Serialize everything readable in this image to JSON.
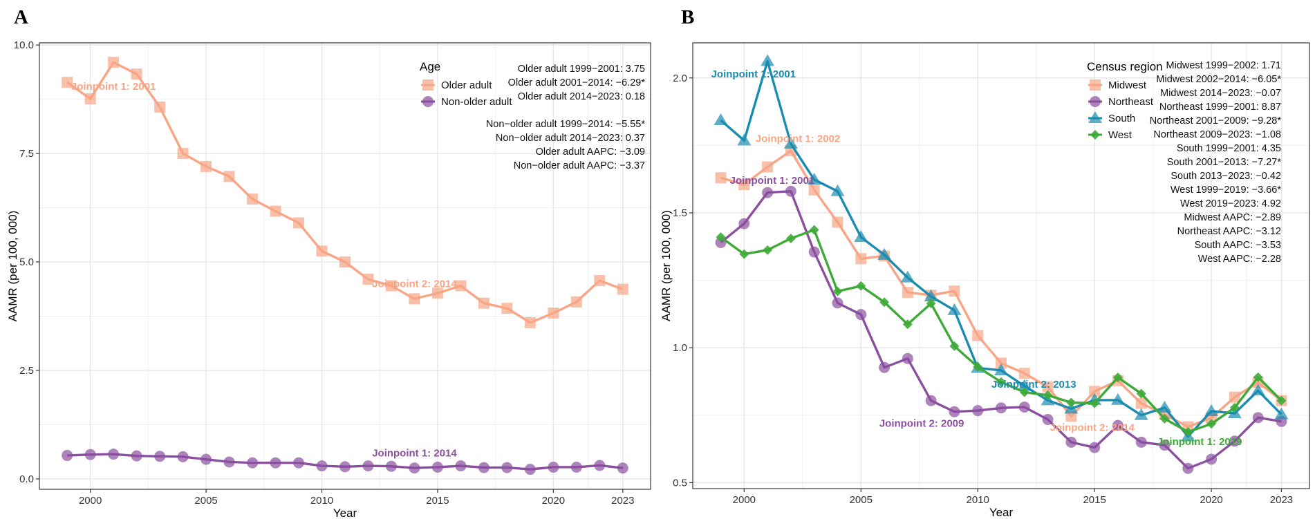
{
  "colors": {
    "orange": "#F7A585",
    "purple": "#8A4F9E",
    "teal": "#1A8CB0",
    "green": "#3DAA37"
  },
  "chart_data": [
    {
      "panel": "A",
      "type": "line",
      "xlabel": "Year",
      "ylabel": "AAMR (per 100, 000)",
      "x_ticks": [
        "2000",
        "2005",
        "2010",
        "2015",
        "2020",
        "2023"
      ],
      "y_ticks": [
        "0.0",
        "2.5",
        "5.0",
        "7.5",
        "10.0"
      ],
      "xlim": [
        1997.8,
        2024.2
      ],
      "ylim": [
        -0.24,
        10.05
      ],
      "grid": true,
      "legend": {
        "title": "Age",
        "placement": "top-right",
        "entries": [
          "Older adult",
          "Non-older adult"
        ]
      },
      "x": [
        1999,
        2000,
        2001,
        2002,
        2003,
        2004,
        2005,
        2006,
        2007,
        2008,
        2009,
        2010,
        2011,
        2012,
        2013,
        2014,
        2015,
        2016,
        2017,
        2018,
        2019,
        2020,
        2021,
        2022,
        2023
      ],
      "series": [
        {
          "name": "Older adult",
          "color_key": "orange",
          "marker": "square",
          "values": [
            9.14,
            8.76,
            9.6,
            9.33,
            8.57,
            7.5,
            7.2,
            6.97,
            6.45,
            6.17,
            5.9,
            5.25,
            5.0,
            4.6,
            4.45,
            4.15,
            4.28,
            4.45,
            4.05,
            3.93,
            3.6,
            3.82,
            4.08,
            4.57,
            4.37
          ]
        },
        {
          "name": "Non-older adult",
          "color_key": "purple",
          "marker": "circle",
          "values": [
            0.54,
            0.56,
            0.57,
            0.53,
            0.52,
            0.51,
            0.45,
            0.39,
            0.37,
            0.37,
            0.37,
            0.3,
            0.28,
            0.3,
            0.29,
            0.25,
            0.27,
            0.3,
            0.26,
            0.26,
            0.22,
            0.27,
            0.27,
            0.31,
            0.25
          ]
        }
      ],
      "annotations": [
        "Older adult 1999−2001: 3.75",
        "Older adult 2001−2014: −6.29*",
        "Older adult 2014−2023: 0.18",
        "",
        "Non−older adult 1999−2014: −5.55*",
        "Non−older adult 2014−2023: 0.37",
        "Older adult AAPC: −3.09",
        "Non−older adult AAPC: −3.37"
      ],
      "joinpoints": [
        {
          "text": "Joinpoint 1: 2001",
          "color_key": "orange",
          "at": [
            2001,
            9.05
          ]
        },
        {
          "text": "Joinpoint 2: 2014",
          "color_key": "orange",
          "at": [
            2014.0,
            4.5
          ]
        },
        {
          "text": "Joinpoint 1: 2014",
          "color_key": "purple",
          "at": [
            2014.0,
            0.6
          ]
        }
      ]
    },
    {
      "panel": "B",
      "type": "line",
      "xlabel": "Year",
      "ylabel": "AAMR (per 100, 000)",
      "x_ticks": [
        "2000",
        "2005",
        "2010",
        "2015",
        "2020",
        "2023"
      ],
      "y_ticks": [
        "0.5",
        "1.0",
        "1.5",
        "2.0"
      ],
      "xlim": [
        1997.8,
        2024.2
      ],
      "ylim": [
        0.478,
        2.13
      ],
      "grid": true,
      "legend": {
        "title": "Census region",
        "placement": "top-right",
        "entries": [
          "Midwest",
          "Northeast",
          "South",
          "West"
        ]
      },
      "x": [
        1999,
        2000,
        2001,
        2002,
        2003,
        2004,
        2005,
        2006,
        2007,
        2008,
        2009,
        2010,
        2011,
        2012,
        2013,
        2014,
        2015,
        2016,
        2017,
        2018,
        2019,
        2020,
        2021,
        2022,
        2023
      ],
      "series": [
        {
          "name": "Midwest",
          "color_key": "orange",
          "marker": "square",
          "values": [
            1.63,
            1.605,
            1.67,
            1.73,
            1.585,
            1.465,
            1.33,
            1.34,
            1.205,
            1.195,
            1.21,
            1.045,
            0.943,
            0.905,
            0.855,
            0.746,
            0.838,
            0.878,
            0.794,
            0.753,
            0.707,
            0.74,
            0.817,
            0.872,
            0.804
          ]
        },
        {
          "name": "Northeast",
          "color_key": "purple",
          "marker": "circle",
          "values": [
            1.39,
            1.46,
            1.575,
            1.58,
            1.355,
            1.166,
            1.123,
            0.927,
            0.96,
            0.804,
            0.763,
            0.767,
            0.777,
            0.78,
            0.734,
            0.65,
            0.63,
            0.712,
            0.65,
            0.639,
            0.553,
            0.587,
            0.654,
            0.741,
            0.727
          ]
        },
        {
          "name": "South",
          "color_key": "teal",
          "marker": "triangle",
          "values": [
            1.843,
            1.768,
            2.062,
            1.756,
            1.623,
            1.58,
            1.41,
            1.344,
            1.26,
            1.19,
            1.139,
            0.925,
            0.916,
            0.858,
            0.805,
            0.774,
            0.806,
            0.806,
            0.75,
            0.778,
            0.671,
            0.765,
            0.757,
            0.841,
            0.753
          ]
        },
        {
          "name": "West",
          "color_key": "green",
          "marker": "diamond",
          "values": [
            1.41,
            1.347,
            1.362,
            1.405,
            1.437,
            1.209,
            1.229,
            1.169,
            1.087,
            1.164,
            1.006,
            0.929,
            0.873,
            0.835,
            0.824,
            0.797,
            0.794,
            0.89,
            0.83,
            0.737,
            0.688,
            0.718,
            0.778,
            0.891,
            0.804
          ]
        }
      ],
      "annotations": [
        "Midwest 1999−2002: 1.71",
        "Midwest 2002−2014: −6.05*",
        "Midwest 2014−2023: −0.07",
        "Northeast 1999−2001: 8.87",
        "Northeast 2001−2009: −9.28*",
        "Northeast 2009−2023: −1.08",
        "South 1999−2001: 4.35",
        "South 2001−2013: −7.27*",
        "South 2013−2023: −0.42",
        "West 1999−2019: −3.66*",
        "West 2019−2023: 4.92",
        "Midwest AAPC: −2.89",
        "Northeast AAPC: −3.12",
        "South AAPC: −3.53",
        "West AAPC: −2.28"
      ],
      "joinpoints": [
        {
          "text": "Joinpoint 1: 2001",
          "color_key": "teal",
          "at": [
            2000.4,
            2.015
          ]
        },
        {
          "text": "Joinpoint 1: 2002",
          "color_key": "orange",
          "at": [
            2002.3,
            1.775
          ]
        },
        {
          "text": "Joinpoint 1: 2001",
          "color_key": "purple",
          "at": [
            2001.2,
            1.62
          ]
        },
        {
          "text": "Joinpoint 2: 2009",
          "color_key": "purple",
          "at": [
            2007.6,
            0.72
          ]
        },
        {
          "text": "Joinpoint 2: 2013",
          "color_key": "teal",
          "at": [
            2012.4,
            0.865
          ]
        },
        {
          "text": "Joinpoint 2: 2014",
          "color_key": "orange",
          "at": [
            2014.9,
            0.705
          ]
        },
        {
          "text": "Joinpoint 1: 2019",
          "color_key": "green",
          "at": [
            2019.5,
            0.652
          ]
        }
      ]
    }
  ]
}
